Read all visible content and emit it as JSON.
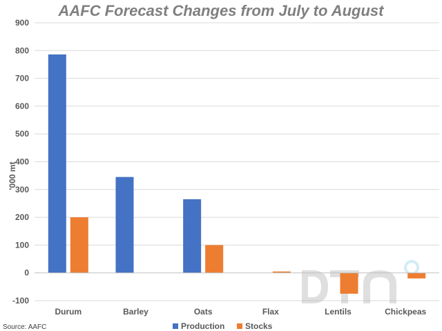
{
  "source": "Source: AAFC",
  "colors": {
    "production": "#4472C4",
    "stocks": "#ED7D31",
    "grid": "#d9d9d9",
    "axis": "#bfbfbf"
  },
  "chart_data": {
    "type": "bar",
    "title": "AAFC Forecast Changes from July to August",
    "xlabel": "",
    "ylabel": "'000 mt",
    "ylim": [
      -100,
      900
    ],
    "yticks": [
      -100,
      0,
      100,
      200,
      300,
      400,
      500,
      600,
      700,
      800,
      900
    ],
    "grid": true,
    "legend": "bottom",
    "categories": [
      "Durum",
      "Barley",
      "Oats",
      "Flax",
      "Lentils",
      "Chickpeas"
    ],
    "series": [
      {
        "name": "Production",
        "values": [
          786,
          345,
          265,
          0,
          0,
          0
        ]
      },
      {
        "name": "Stocks",
        "values": [
          200,
          0,
          100,
          5,
          -75,
          -20
        ]
      }
    ]
  }
}
